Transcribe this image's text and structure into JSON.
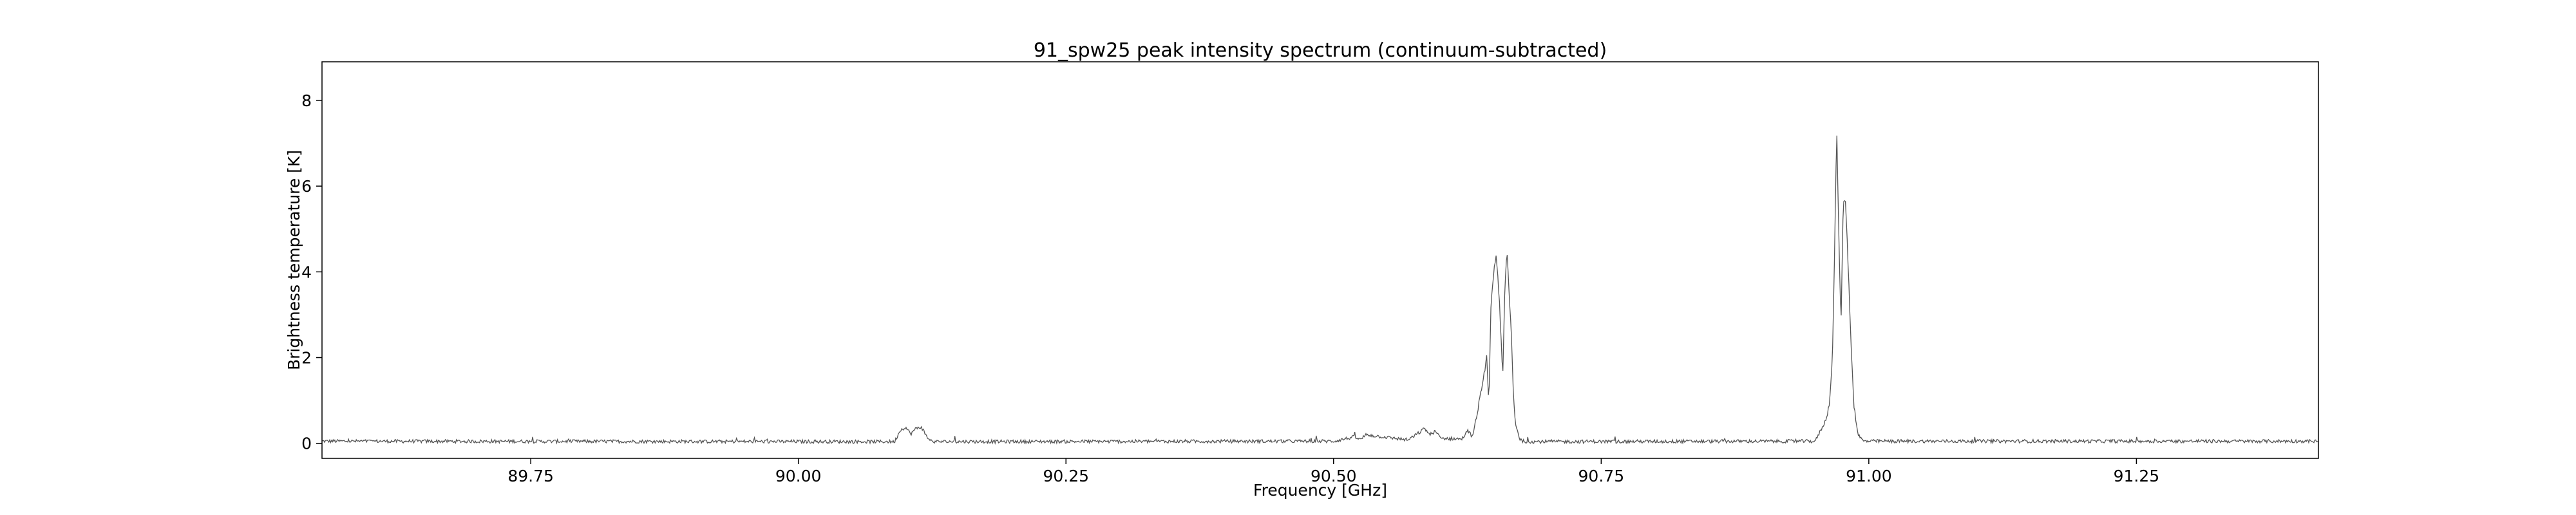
{
  "chart_data": {
    "type": "line",
    "title": "91_spw25 peak intensity spectrum (continuum-subtracted)",
    "xlabel": "Frequency [GHz]",
    "ylabel": "Brightness temperature [K]",
    "xlim": [
      89.555,
      91.42
    ],
    "ylim": [
      -0.35,
      8.9
    ],
    "x_ticks": [
      89.75,
      90.0,
      90.25,
      90.5,
      90.75,
      91.0,
      91.25
    ],
    "x_tick_labels": [
      "89.75",
      "90.00",
      "90.25",
      "90.50",
      "90.75",
      "91.00",
      "91.25"
    ],
    "y_ticks": [
      0,
      2,
      4,
      6,
      8
    ],
    "y_tick_labels": [
      "0",
      "2",
      "4",
      "6",
      "8"
    ],
    "grid": false,
    "legend": "none",
    "line_color": "#555555",
    "baseline_noise_K": 0.04,
    "series": [
      {
        "x": [
          89.555,
          90.09,
          90.095,
          90.1,
          90.105,
          90.11,
          90.115,
          90.12,
          90.125,
          90.5,
          90.52,
          90.525,
          90.53,
          90.57,
          90.58,
          90.585,
          90.59,
          90.595,
          90.6,
          90.62,
          90.625,
          90.63,
          90.64,
          90.643,
          90.645,
          90.647,
          90.65,
          90.652,
          90.655,
          90.658,
          90.66,
          90.662,
          90.664,
          90.666,
          90.668,
          90.67,
          90.674,
          90.678,
          90.95,
          90.96,
          90.963,
          90.966,
          90.968,
          90.97,
          90.972,
          90.974,
          90.976,
          90.978,
          90.98,
          90.983,
          90.986,
          90.99,
          90.995,
          91.42
        ],
        "y": [
          0.05,
          0.04,
          0.3,
          0.38,
          0.22,
          0.35,
          0.38,
          0.15,
          0.04,
          0.05,
          0.15,
          0.08,
          0.2,
          0.08,
          0.25,
          0.35,
          0.2,
          0.28,
          0.12,
          0.1,
          0.3,
          0.15,
          1.5,
          2.0,
          0.9,
          3.2,
          4.1,
          4.4,
          3.3,
          1.5,
          3.6,
          4.5,
          3.5,
          2.6,
          1.1,
          0.45,
          0.1,
          0.04,
          0.05,
          0.55,
          0.9,
          2.0,
          4.4,
          7.4,
          4.8,
          2.7,
          5.5,
          5.8,
          4.6,
          2.6,
          0.9,
          0.2,
          0.05,
          0.05
        ]
      }
    ]
  }
}
